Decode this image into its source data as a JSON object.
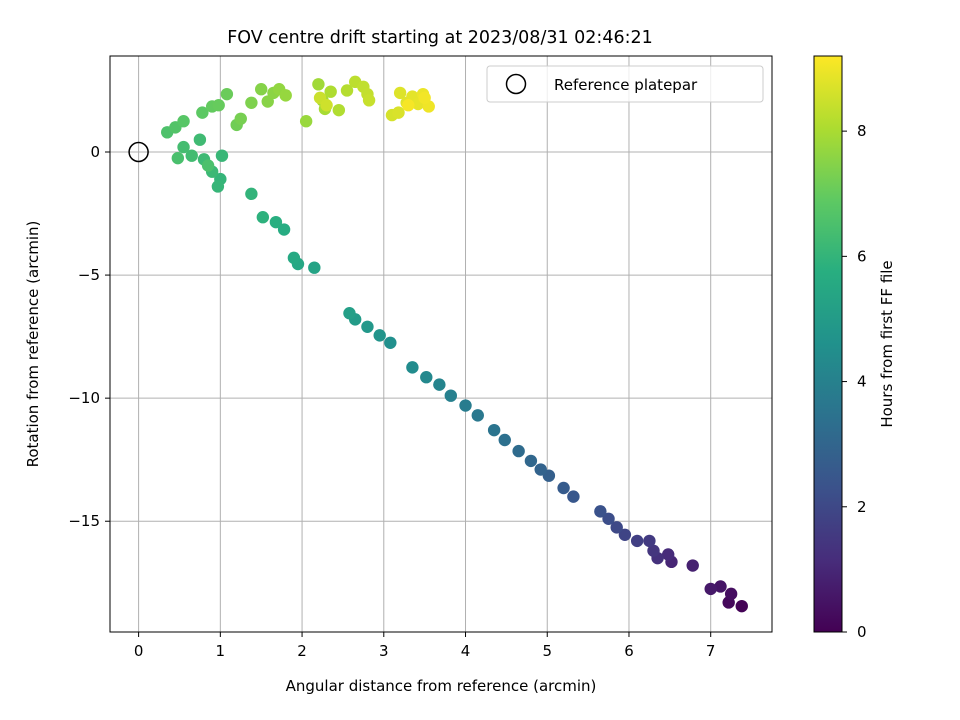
{
  "chart_data": {
    "type": "scatter",
    "title": "FOV centre drift starting at 2023/08/31 02:46:21",
    "xlabel": "Angular distance from reference (arcmin)",
    "ylabel": "Rotation from reference (arcmin)",
    "xlim": [
      -0.35,
      7.75
    ],
    "ylim": [
      -19.5,
      3.9
    ],
    "xticks": [
      0,
      1,
      2,
      3,
      4,
      5,
      6,
      7
    ],
    "yticks": [
      0,
      -5,
      -10,
      -15
    ],
    "grid": true,
    "legend": {
      "placement": "top-right",
      "entries": [
        "Reference platepar"
      ]
    },
    "reference_point": {
      "x": 0,
      "y": 0,
      "label": "Reference platepar"
    },
    "colorbar": {
      "label": "Hours from first FF file",
      "colormap": "viridis",
      "range": [
        0,
        9.2
      ],
      "ticks": [
        0,
        2,
        4,
        6,
        8
      ]
    },
    "series": [
      {
        "points": [
          [
            7.38,
            -18.45,
            0.05
          ],
          [
            7.22,
            -18.3,
            0.2
          ],
          [
            7.25,
            -17.95,
            0.35
          ],
          [
            7.12,
            -17.65,
            0.5
          ],
          [
            7.0,
            -17.75,
            0.65
          ],
          [
            6.78,
            -16.8,
            0.85
          ],
          [
            6.52,
            -16.65,
            1.0
          ],
          [
            6.48,
            -16.35,
            1.15
          ],
          [
            6.35,
            -16.5,
            1.3
          ],
          [
            6.3,
            -16.2,
            1.45
          ],
          [
            6.25,
            -15.8,
            1.6
          ],
          [
            6.1,
            -15.8,
            1.75
          ],
          [
            5.95,
            -15.55,
            1.9
          ],
          [
            5.85,
            -15.25,
            2.05
          ],
          [
            5.75,
            -14.9,
            2.2
          ],
          [
            5.65,
            -14.6,
            2.35
          ],
          [
            5.32,
            -14.0,
            2.5
          ],
          [
            5.2,
            -13.65,
            2.65
          ],
          [
            5.02,
            -13.15,
            2.8
          ],
          [
            4.92,
            -12.9,
            2.95
          ],
          [
            4.8,
            -12.55,
            3.1
          ],
          [
            4.65,
            -12.15,
            3.25
          ],
          [
            4.48,
            -11.7,
            3.4
          ],
          [
            4.35,
            -11.3,
            3.55
          ],
          [
            4.15,
            -10.7,
            3.7
          ],
          [
            4.0,
            -10.3,
            3.85
          ],
          [
            3.82,
            -9.9,
            4.0
          ],
          [
            3.68,
            -9.45,
            4.15
          ],
          [
            3.52,
            -9.15,
            4.3
          ],
          [
            3.35,
            -8.75,
            4.45
          ],
          [
            3.08,
            -7.75,
            4.6
          ],
          [
            2.95,
            -7.45,
            4.75
          ],
          [
            2.8,
            -7.1,
            4.9
          ],
          [
            2.65,
            -6.8,
            5.05
          ],
          [
            2.58,
            -6.55,
            5.2
          ],
          [
            2.15,
            -4.7,
            5.35
          ],
          [
            1.95,
            -4.55,
            5.5
          ],
          [
            1.9,
            -4.3,
            5.6
          ],
          [
            1.78,
            -3.15,
            5.7
          ],
          [
            1.68,
            -2.85,
            5.8
          ],
          [
            1.52,
            -2.65,
            5.9
          ],
          [
            1.38,
            -1.7,
            6.0
          ],
          [
            1.0,
            -1.1,
            6.05
          ],
          [
            0.97,
            -1.4,
            6.1
          ],
          [
            1.02,
            -0.15,
            6.15
          ],
          [
            0.9,
            -0.8,
            6.2
          ],
          [
            0.8,
            -0.3,
            6.25
          ],
          [
            0.75,
            0.5,
            6.3
          ],
          [
            0.65,
            -0.15,
            6.35
          ],
          [
            0.55,
            0.2,
            6.4
          ],
          [
            0.48,
            -0.25,
            6.5
          ],
          [
            0.85,
            -0.55,
            6.55
          ],
          [
            0.35,
            0.8,
            6.6
          ],
          [
            0.45,
            1.0,
            6.7
          ],
          [
            0.55,
            1.25,
            6.8
          ],
          [
            0.78,
            1.6,
            6.9
          ],
          [
            0.9,
            1.85,
            7.0
          ],
          [
            0.98,
            1.9,
            7.05
          ],
          [
            1.08,
            2.35,
            7.1
          ],
          [
            1.2,
            1.1,
            7.2
          ],
          [
            1.25,
            1.35,
            7.3
          ],
          [
            1.38,
            2.0,
            7.4
          ],
          [
            1.5,
            2.55,
            7.5
          ],
          [
            1.58,
            2.05,
            7.55
          ],
          [
            1.65,
            2.4,
            7.6
          ],
          [
            1.72,
            2.55,
            7.7
          ],
          [
            1.8,
            2.3,
            7.75
          ],
          [
            2.05,
            1.25,
            7.8
          ],
          [
            2.2,
            2.75,
            7.9
          ],
          [
            2.25,
            2.1,
            7.95
          ],
          [
            2.28,
            1.75,
            8.0
          ],
          [
            2.35,
            2.45,
            8.1
          ],
          [
            2.45,
            1.7,
            8.15
          ],
          [
            2.55,
            2.5,
            8.2
          ],
          [
            2.65,
            2.85,
            8.3
          ],
          [
            2.75,
            2.65,
            8.35
          ],
          [
            2.8,
            2.35,
            8.4
          ],
          [
            2.82,
            2.1,
            8.45
          ],
          [
            2.22,
            2.2,
            8.5
          ],
          [
            2.3,
            1.9,
            8.55
          ],
          [
            3.1,
            1.5,
            8.65
          ],
          [
            3.18,
            1.6,
            8.7
          ],
          [
            3.2,
            2.4,
            8.75
          ],
          [
            3.28,
            2.0,
            8.8
          ],
          [
            3.35,
            2.25,
            8.85
          ],
          [
            3.42,
            1.95,
            8.9
          ],
          [
            3.48,
            2.35,
            8.95
          ],
          [
            3.55,
            1.85,
            9.0
          ],
          [
            3.5,
            2.2,
            9.05
          ],
          [
            3.3,
            1.9,
            9.1
          ]
        ]
      }
    ]
  }
}
